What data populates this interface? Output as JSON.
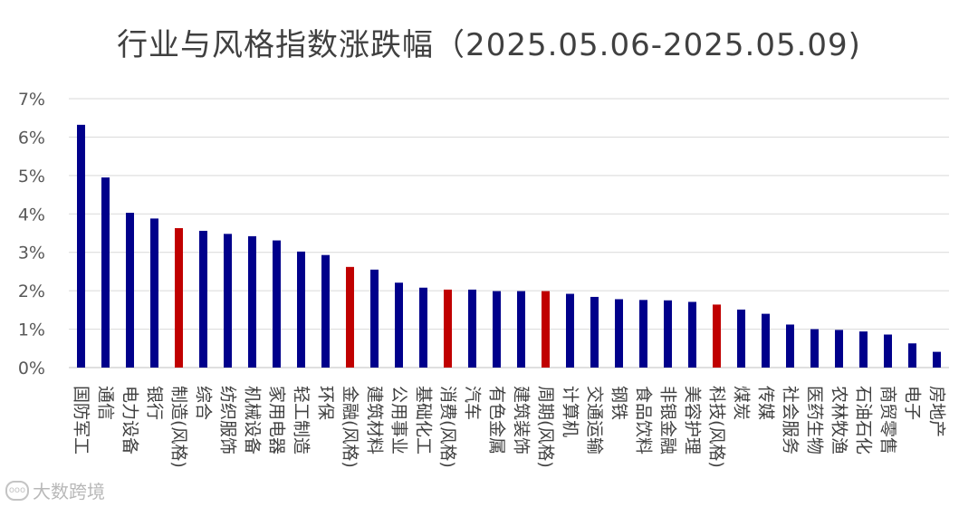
{
  "watermark": "大数跨境",
  "chart_data": {
    "type": "bar",
    "title": "行业与风格指数涨跌幅（2025.05.06-2025.05.09)",
    "xlabel": "",
    "ylabel": "",
    "ylim": [
      0,
      7
    ],
    "yticks": [
      "0%",
      "1%",
      "2%",
      "3%",
      "4%",
      "5%",
      "6%",
      "7%"
    ],
    "grid": true,
    "legend": "none",
    "colors": {
      "industry": "#00008b",
      "style": "#c00000"
    },
    "categories": [
      "国防军工",
      "通信",
      "电力设备",
      "银行",
      "制造(风格)",
      "综合",
      "纺织服饰",
      "机械设备",
      "家用电器",
      "轻工制造",
      "环保",
      "金融(风格)",
      "建筑材料",
      "公用事业",
      "基础化工",
      "消费(风格)",
      "汽车",
      "有色金属",
      "建筑装饰",
      "周期(风格)",
      "计算机",
      "交通运输",
      "钢铁",
      "食品饮料",
      "非银金融",
      "美容护理",
      "科技(风格)",
      "煤炭",
      "传媒",
      "社会服务",
      "医药生物",
      "农林牧渔",
      "石油石化",
      "商贸零售",
      "电子",
      "房地产"
    ],
    "values": [
      6.32,
      4.95,
      4.03,
      3.88,
      3.63,
      3.56,
      3.48,
      3.42,
      3.31,
      3.02,
      2.93,
      2.62,
      2.55,
      2.21,
      2.08,
      2.03,
      2.03,
      1.99,
      1.99,
      1.99,
      1.92,
      1.84,
      1.78,
      1.76,
      1.75,
      1.71,
      1.64,
      1.51,
      1.4,
      1.12,
      1.0,
      0.98,
      0.94,
      0.86,
      0.63,
      0.41
    ],
    "is_style": [
      false,
      false,
      false,
      false,
      true,
      false,
      false,
      false,
      false,
      false,
      false,
      true,
      false,
      false,
      false,
      true,
      false,
      false,
      false,
      true,
      false,
      false,
      false,
      false,
      false,
      false,
      true,
      false,
      false,
      false,
      false,
      false,
      false,
      false,
      false,
      false
    ]
  }
}
